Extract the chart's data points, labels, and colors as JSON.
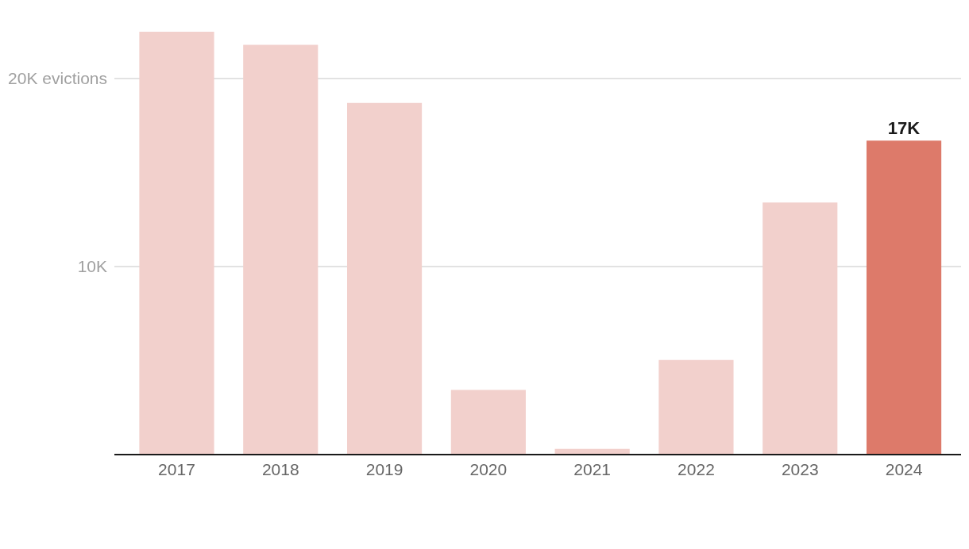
{
  "chart_data": {
    "type": "bar",
    "categories": [
      "2017",
      "2018",
      "2019",
      "2020",
      "2021",
      "2022",
      "2023",
      "2024"
    ],
    "values": [
      22500,
      21800,
      18700,
      3400,
      260,
      5000,
      13400,
      16700
    ],
    "colors": [
      "#f2d0cc",
      "#f2d0cc",
      "#f2d0cc",
      "#f2d0cc",
      "#f2d0cc",
      "#f2d0cc",
      "#f2d0cc",
      "#dd7a6a"
    ],
    "value_labels": [
      null,
      null,
      null,
      null,
      null,
      null,
      null,
      "17K"
    ],
    "ylim": [
      0,
      22500
    ],
    "yticks": [
      {
        "value": 10000,
        "label": "10K"
      },
      {
        "value": 20000,
        "label": "20K evictions"
      }
    ],
    "grid": "y"
  }
}
